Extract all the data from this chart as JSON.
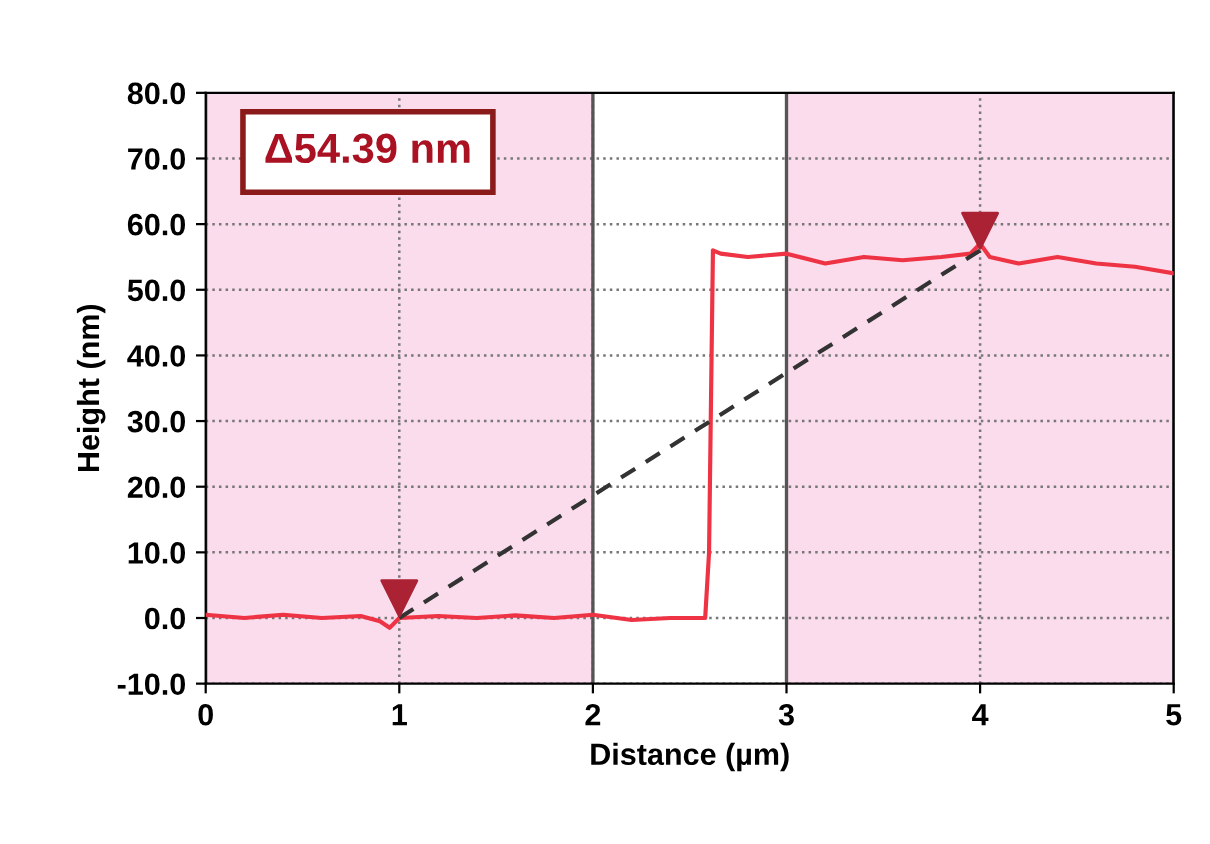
{
  "chart_data": {
    "type": "line",
    "xlabel": "Distance (µm)",
    "ylabel": "Height (nm)",
    "xlim": [
      0,
      5
    ],
    "ylim": [
      -10,
      80
    ],
    "xticks": [
      0,
      1,
      2,
      3,
      4,
      5
    ],
    "yticks": [
      {
        "value": -10,
        "label": "-10.0"
      },
      {
        "value": 0,
        "label": "0.0"
      },
      {
        "value": 10,
        "label": "10.0"
      },
      {
        "value": 20,
        "label": "20.0"
      },
      {
        "value": 30,
        "label": "30.0"
      },
      {
        "value": 40,
        "label": "40.0"
      },
      {
        "value": 50,
        "label": "50.0"
      },
      {
        "value": 60,
        "label": "60.0"
      },
      {
        "value": 70,
        "label": "70.0"
      },
      {
        "value": 80,
        "label": "80.0"
      }
    ],
    "grid": true,
    "bands": [
      {
        "axis": "x",
        "from": 0,
        "to": 2,
        "color": "#fbdcec"
      },
      {
        "axis": "x",
        "from": 3,
        "to": 5,
        "color": "#fbdcec"
      }
    ],
    "annotations": [
      "Δ54.39 nm"
    ],
    "series": [
      {
        "color": "#ee3344",
        "line_style": "solid",
        "x": [
          0,
          0.2,
          0.4,
          0.6,
          0.8,
          0.9,
          0.95,
          1.0,
          1.2,
          1.4,
          1.6,
          1.8,
          2.0,
          2.2,
          2.4,
          2.58,
          2.6,
          2.62,
          2.66,
          2.8,
          3.0,
          3.2,
          3.4,
          3.6,
          3.8,
          3.95,
          4.0,
          4.05,
          4.2,
          4.4,
          4.6,
          4.8,
          5.0
        ],
        "values": [
          0.5,
          0,
          0.5,
          0,
          0.3,
          -0.5,
          -1.5,
          0,
          0.3,
          0,
          0.4,
          0,
          0.5,
          -0.3,
          0,
          0,
          10,
          56,
          55.5,
          55,
          55.5,
          54,
          55,
          54.5,
          55,
          55.5,
          57,
          55,
          54,
          55,
          54,
          53.5,
          52.5
        ]
      },
      {
        "type": "line",
        "color": "#333333",
        "line_style": "dashed",
        "x": [
          1,
          4
        ],
        "values": [
          0,
          56
        ]
      },
      {
        "type": "scatter",
        "color": "#aa2233",
        "marker": "triangle",
        "x": [
          1,
          4
        ],
        "values": [
          3,
          59
        ]
      }
    ]
  }
}
